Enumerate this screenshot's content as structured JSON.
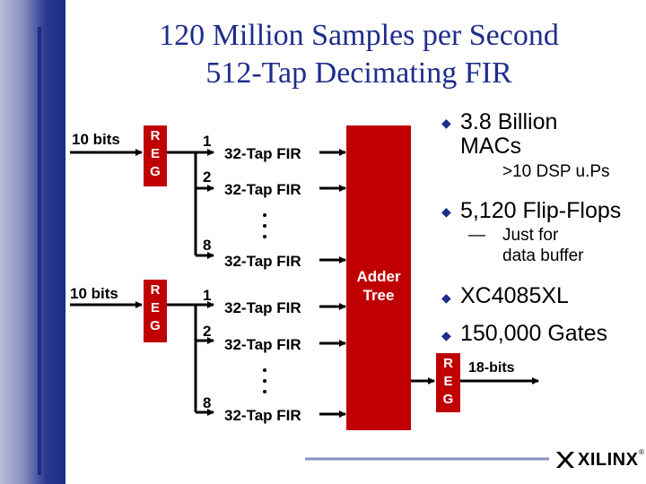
{
  "title": {
    "line1": "120 Million Samples per Second",
    "line2": "512-Tap Decimating FIR"
  },
  "inputs": [
    {
      "bits_label": "10 bits",
      "reg_letters": [
        "R",
        "E",
        "G"
      ]
    },
    {
      "bits_label": "10 bits",
      "reg_letters": [
        "R",
        "E",
        "G"
      ]
    }
  ],
  "fir_groups": [
    {
      "rows": [
        {
          "num": "1",
          "label": "32-Tap FIR"
        },
        {
          "num": "2",
          "label": "32-Tap FIR"
        },
        {
          "num": "8",
          "label": "32-Tap FIR"
        }
      ]
    },
    {
      "rows": [
        {
          "num": "1",
          "label": "32-Tap FIR"
        },
        {
          "num": "2",
          "label": "32-Tap FIR"
        },
        {
          "num": "8",
          "label": "32-Tap FIR"
        }
      ]
    }
  ],
  "adder": {
    "line1": "Adder",
    "line2": "Tree"
  },
  "output": {
    "reg_letters": [
      "R",
      "E",
      "G"
    ],
    "label": "18-bits"
  },
  "bullets": {
    "macs_line1": "3.8 Billion",
    "macs_line2": "MACs",
    "macs_sub": ">10 DSP u.Ps",
    "flipflops": "5,120 Flip-Flops",
    "flipflops_dash": "—",
    "flipflops_sub1": "Just for",
    "flipflops_sub2": "data buffer",
    "device": "XC4085XL",
    "gates": "150,000 Gates"
  },
  "logo": {
    "text": "XILINX",
    "mark": "®"
  },
  "colors": {
    "title": "#1f2d8c",
    "block": "#c00000",
    "band": "#1a2a88"
  }
}
